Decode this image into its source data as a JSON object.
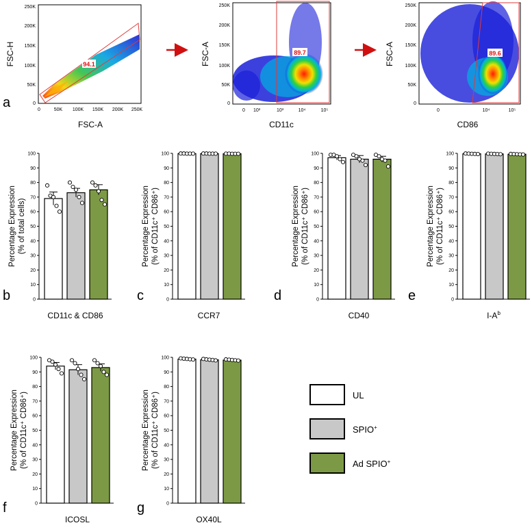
{
  "colors": {
    "UL": "#ffffff",
    "SPIO": "#c8c8c8",
    "AdSPIO": "#7c9a45",
    "gate": "#e03a3a",
    "arrow": "#d01010"
  },
  "flow": [
    {
      "panel": "a",
      "xlabel": "FSC-A",
      "ylabel": "FSC-H",
      "gate_value": "94.1",
      "xticks": [
        "0",
        "50K",
        "100K",
        "150K",
        "200K",
        "250K"
      ],
      "yticks": [
        "0",
        "50K",
        "100K",
        "150K",
        "200K",
        "250K"
      ]
    },
    {
      "xlabel": "CD11c",
      "ylabel": "FSC-A",
      "gate_value": "89.7",
      "xticks": [
        "0",
        "10²",
        "10³",
        "10⁴",
        "10⁵"
      ],
      "yticks": [
        "0",
        "50K",
        "100K",
        "150K",
        "200K",
        "250K"
      ]
    },
    {
      "xlabel": "CD86",
      "ylabel": "FSC-A",
      "gate_value": "89.6",
      "xticks": [
        "0",
        "10⁴",
        "10⁵"
      ],
      "yticks": [
        "0",
        "50K",
        "100K",
        "150K",
        "200K",
        "250K"
      ]
    }
  ],
  "chart_data": [
    {
      "panel": "b",
      "type": "bar",
      "title": "CD11c & CD86",
      "ylabel": [
        "Percentage Expression",
        "(% of total cells)"
      ],
      "ylim": [
        0,
        100
      ],
      "categories": [
        "UL",
        "SPIO⁺",
        "Ad SPIO⁺"
      ],
      "values": [
        69,
        73,
        75
      ],
      "errors": [
        4.5,
        3,
        3.5
      ],
      "points": [
        [
          78,
          71,
          70,
          64,
          60
        ],
        [
          80,
          77,
          75,
          70,
          66
        ],
        [
          80,
          78,
          74,
          68,
          65
        ]
      ]
    },
    {
      "panel": "c",
      "type": "bar",
      "title": "CCR7",
      "ylabel": [
        "Percentage Expression",
        "(% of CD11c⁺ CD86⁺)"
      ],
      "ylim": [
        0,
        100
      ],
      "categories": [
        "UL",
        "SPIO⁺",
        "Ad SPIO⁺"
      ],
      "values": [
        99.8,
        99.8,
        99.7
      ],
      "errors": [
        0.1,
        0.1,
        0.1
      ],
      "points": [
        [
          99.9,
          99.9,
          99.8,
          99.8,
          99.8
        ],
        [
          99.9,
          99.9,
          99.8,
          99.8,
          99.8
        ],
        [
          99.8,
          99.8,
          99.7,
          99.7,
          99.7
        ]
      ]
    },
    {
      "panel": "d",
      "type": "bar",
      "title": "CD40",
      "ylabel": [
        "Percentage Expression",
        "(% of CD11c⁺ CD86⁺)"
      ],
      "ylim": [
        0,
        100
      ],
      "categories": [
        "UL",
        "SPIO⁺",
        "Ad SPIO⁺"
      ],
      "values": [
        97,
        96,
        96
      ],
      "errors": [
        1.5,
        2.5,
        2
      ],
      "points": [
        [
          99,
          99,
          98,
          96,
          94
        ],
        [
          99,
          98,
          96,
          95,
          92
        ],
        [
          99,
          98,
          96,
          95,
          91
        ]
      ]
    },
    {
      "panel": "e",
      "type": "bar",
      "title": "I-A",
      "title_sup": "b",
      "ylabel": [
        "Percentage Expression",
        "(% of CD11c⁺ CD86⁺)"
      ],
      "ylim": [
        0,
        100
      ],
      "categories": [
        "UL",
        "SPIO⁺",
        "Ad SPIO⁺"
      ],
      "values": [
        99.7,
        99.6,
        99.4
      ],
      "errors": [
        0.1,
        0.1,
        0.1
      ],
      "points": [
        [
          99.9,
          99.8,
          99.7,
          99.6,
          99.5
        ],
        [
          99.8,
          99.7,
          99.6,
          99.5,
          99.4
        ],
        [
          99.6,
          99.5,
          99.4,
          99.3,
          99.2
        ]
      ]
    },
    {
      "panel": "f",
      "type": "bar",
      "title": "ICOSL",
      "ylabel": [
        "Percentage Expression",
        "(% of CD11c⁺ CD86⁺)"
      ],
      "ylim": [
        0,
        100
      ],
      "categories": [
        "UL",
        "SPIO⁺",
        "Ad SPIO⁺"
      ],
      "values": [
        94,
        91.5,
        93
      ],
      "errors": [
        2.5,
        3.5,
        2.5
      ],
      "points": [
        [
          98,
          97,
          95,
          92,
          89
        ],
        [
          98,
          96,
          92,
          88,
          85
        ],
        [
          98,
          96,
          94,
          90,
          88
        ]
      ]
    },
    {
      "panel": "g",
      "type": "bar",
      "title": "OX40L",
      "ylabel": [
        "Percentage Expression",
        "(% of CD11c⁺ CD86⁺)"
      ],
      "ylim": [
        0,
        100
      ],
      "categories": [
        "UL",
        "SPIO⁺",
        "Ad SPIO⁺"
      ],
      "values": [
        98.8,
        98.3,
        98.1
      ],
      "errors": [
        0.2,
        0.2,
        0.2
      ],
      "points": [
        [
          99.3,
          99.1,
          98.9,
          98.7,
          98.5
        ],
        [
          98.9,
          98.6,
          98.4,
          98.2,
          97.9
        ],
        [
          98.6,
          98.4,
          98.2,
          98.0,
          97.8
        ]
      ]
    }
  ],
  "yticks": [
    "0",
    "10",
    "20",
    "30",
    "40",
    "50",
    "60",
    "70",
    "80",
    "90",
    "100"
  ],
  "legend": [
    {
      "label": "UL",
      "sup": ""
    },
    {
      "label": "SPIO",
      "sup": "+"
    },
    {
      "label": "Ad SPIO",
      "sup": "+"
    }
  ]
}
